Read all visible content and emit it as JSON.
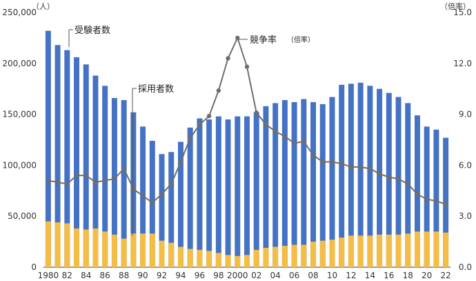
{
  "chart_data": {
    "type": "bar",
    "units": {
      "left": "（人）",
      "right": "（倍率）"
    },
    "left_axis": {
      "ylim": [
        0,
        250000
      ],
      "ticks": [
        "0",
        "50,000",
        "100,000",
        "150,000",
        "200,000",
        "250,000"
      ]
    },
    "right_axis": {
      "ylim": [
        0,
        15
      ],
      "ticks": [
        "0.0",
        "3.0",
        "6.0",
        "9.0",
        "12.0",
        "15.0"
      ]
    },
    "x_tick_labels": [
      "1980",
      "82",
      "84",
      "86",
      "88",
      "90",
      "92",
      "94",
      "96",
      "98",
      "2000",
      "02",
      "04",
      "06",
      "08",
      "10",
      "12",
      "14",
      "16",
      "18",
      "20",
      "22"
    ],
    "x": [
      1980,
      1981,
      1982,
      1983,
      1984,
      1985,
      1986,
      1987,
      1988,
      1989,
      1990,
      1991,
      1992,
      1993,
      1994,
      1995,
      1996,
      1997,
      1998,
      1999,
      2000,
      2001,
      2002,
      2003,
      2004,
      2005,
      2006,
      2007,
      2008,
      2009,
      2010,
      2011,
      2012,
      2013,
      2014,
      2015,
      2016,
      2017,
      2018,
      2019,
      2020,
      2021,
      2022
    ],
    "series": [
      {
        "name": "受験者数",
        "type": "bar",
        "axis": "left",
        "color": "#4472c4",
        "values": [
          232000,
          218000,
          213000,
          206000,
          199000,
          188000,
          178000,
          166000,
          164000,
          152000,
          138000,
          124000,
          111000,
          113000,
          123000,
          137000,
          146000,
          145000,
          148000,
          145000,
          148000,
          148000,
          152000,
          158000,
          161000,
          164000,
          162000,
          165000,
          162000,
          160000,
          167000,
          179000,
          180000,
          181000,
          178000,
          175000,
          171000,
          167000,
          161000,
          149000,
          138000,
          135000,
          127000
        ]
      },
      {
        "name": "採用者数",
        "type": "bar",
        "axis": "left",
        "color": "#f5bd45",
        "values": [
          45000,
          44000,
          43000,
          38000,
          37000,
          38000,
          35000,
          32000,
          28000,
          33000,
          33000,
          33000,
          26000,
          24000,
          20000,
          18000,
          17000,
          16000,
          14000,
          12000,
          11000,
          12000,
          17000,
          19000,
          20000,
          21000,
          22000,
          22000,
          25000,
          26000,
          27000,
          29000,
          31000,
          31000,
          31000,
          32000,
          32000,
          32000,
          33000,
          35000,
          35000,
          35000,
          34000
        ]
      },
      {
        "name": "競争率",
        "type": "line",
        "axis": "right",
        "color": "#6e6e6e",
        "values": [
          5.1,
          5.0,
          4.9,
          5.4,
          5.4,
          5.0,
          5.1,
          5.2,
          5.8,
          4.6,
          4.2,
          3.8,
          4.3,
          4.9,
          6.2,
          7.6,
          8.4,
          8.9,
          10.4,
          12.3,
          13.5,
          11.8,
          9.1,
          8.4,
          8.0,
          7.7,
          7.3,
          7.4,
          6.6,
          6.2,
          6.2,
          6.1,
          5.9,
          5.9,
          5.8,
          5.5,
          5.3,
          5.2,
          4.9,
          4.3,
          4.0,
          3.9,
          3.7
        ]
      }
    ],
    "annotations": {
      "examinees": "受験者数",
      "hires": "採用者数",
      "ratio_main": "競争率",
      "ratio_unit": "（倍率）"
    }
  }
}
